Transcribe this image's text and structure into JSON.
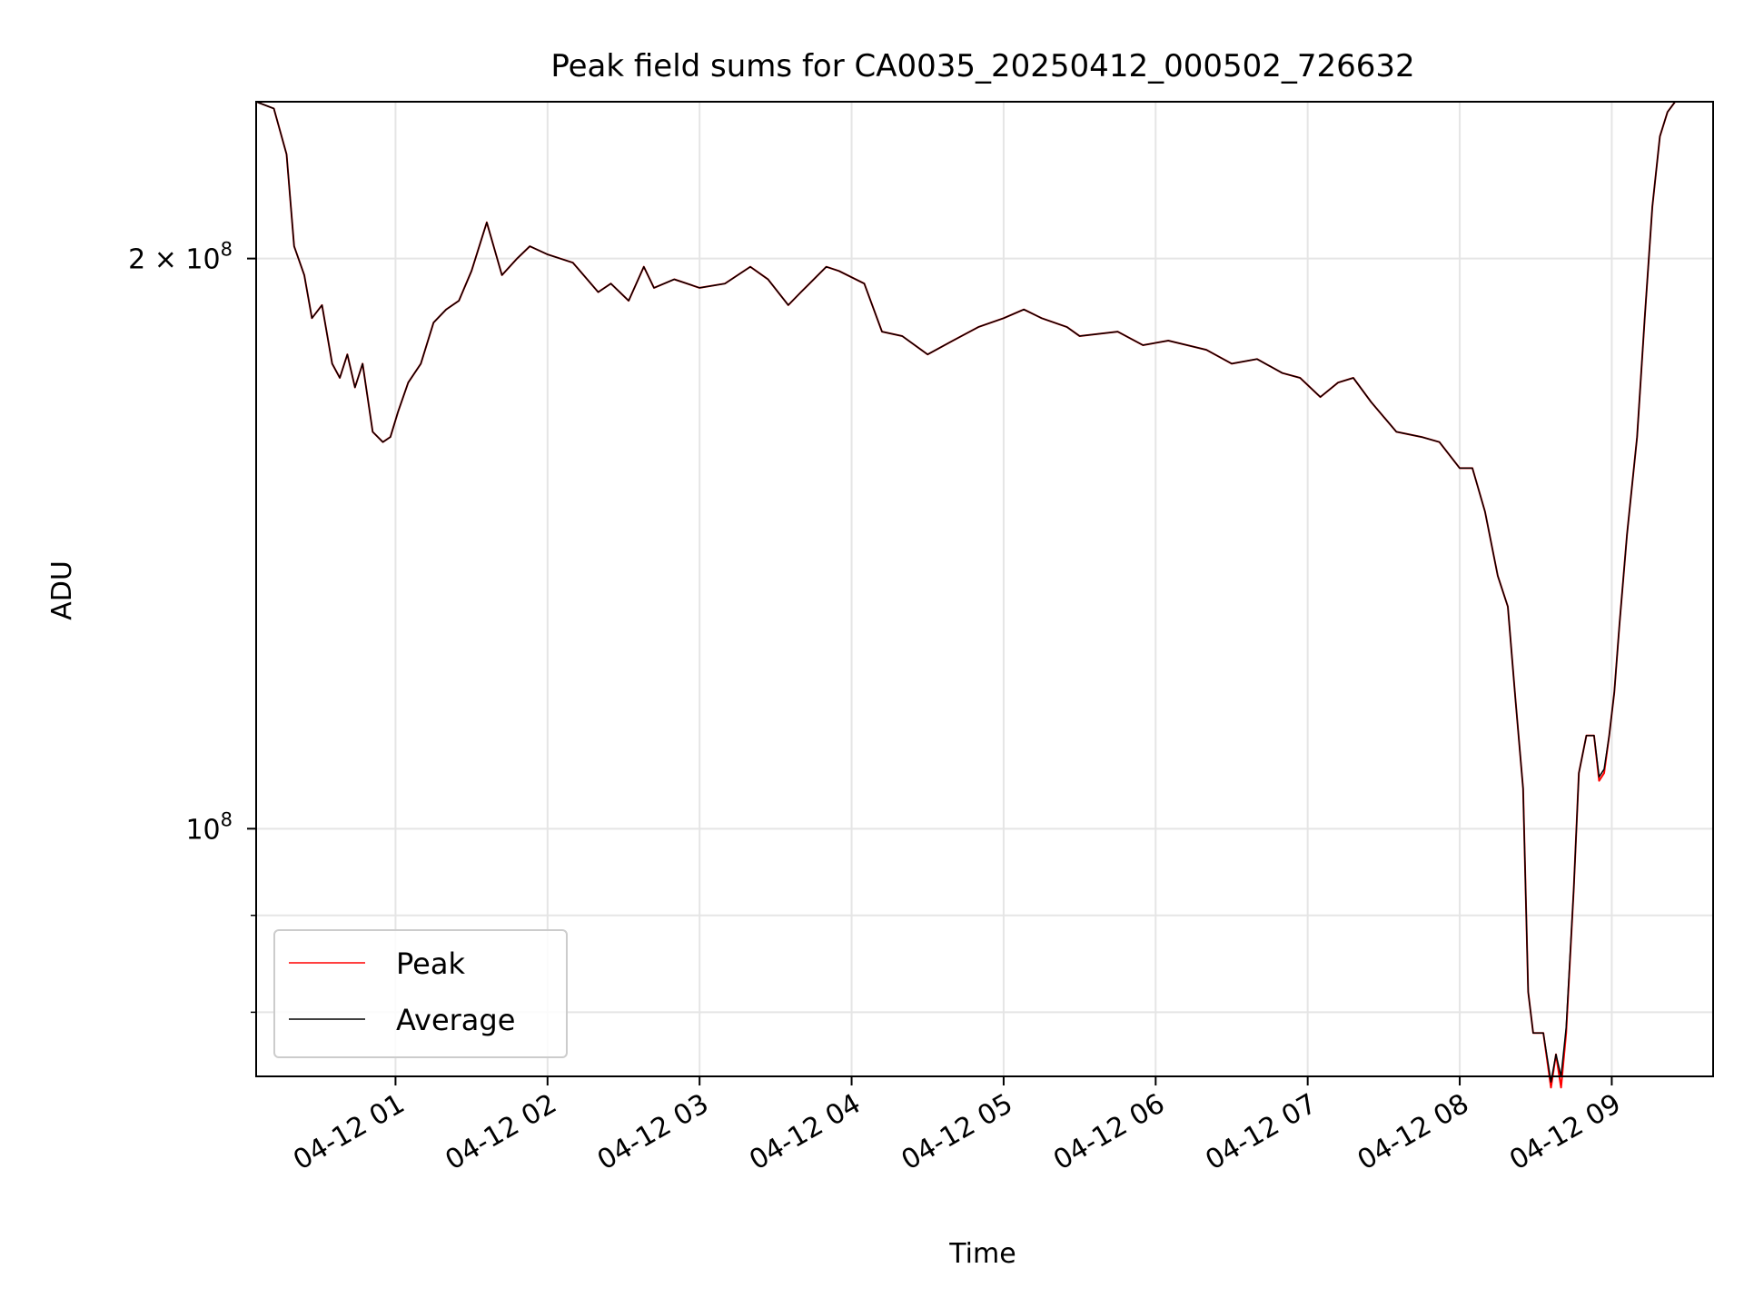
{
  "chart_data": {
    "type": "line",
    "title": "Peak field sums for CA0035_20250412_000502_726632",
    "xlabel": "Time",
    "ylabel": "ADU",
    "y_scale": "log",
    "ylim": [
      74000000,
      242000000
    ],
    "xlim": [
      "2025-04-12 00:05",
      "2025-04-12 09:40"
    ],
    "grid": true,
    "legend_position": "lower-left",
    "x_ticks": [
      {
        "value": "2025-04-12 01:00",
        "label": "04-12 01"
      },
      {
        "value": "2025-04-12 02:00",
        "label": "04-12 02"
      },
      {
        "value": "2025-04-12 03:00",
        "label": "04-12 03"
      },
      {
        "value": "2025-04-12 04:00",
        "label": "04-12 04"
      },
      {
        "value": "2025-04-12 05:00",
        "label": "04-12 05"
      },
      {
        "value": "2025-04-12 06:00",
        "label": "04-12 06"
      },
      {
        "value": "2025-04-12 07:00",
        "label": "04-12 07"
      },
      {
        "value": "2025-04-12 08:00",
        "label": "04-12 08"
      },
      {
        "value": "2025-04-12 09:00",
        "label": "04-12 09"
      }
    ],
    "y_ticks": [
      {
        "value": 200000000,
        "label_base": "2 × 10",
        "label_exp": "8"
      },
      {
        "value": 100000000,
        "label_base": "10",
        "label_exp": "8"
      }
    ],
    "y_minor_ticks": [
      80000000,
      90000000
    ],
    "series": [
      {
        "name": "Peak",
        "color": "#ff0000",
        "x": [
          "2025-04-12 00:05",
          "2025-04-12 00:12",
          "2025-04-12 00:17",
          "2025-04-12 00:20",
          "2025-04-12 00:24",
          "2025-04-12 00:27",
          "2025-04-12 00:31",
          "2025-04-12 00:35",
          "2025-04-12 00:38",
          "2025-04-12 00:41",
          "2025-04-12 00:44",
          "2025-04-12 00:47",
          "2025-04-12 00:51",
          "2025-04-12 00:55",
          "2025-04-12 00:58",
          "2025-04-12 01:01",
          "2025-04-12 01:05",
          "2025-04-12 01:10",
          "2025-04-12 01:15",
          "2025-04-12 01:20",
          "2025-04-12 01:25",
          "2025-04-12 01:30",
          "2025-04-12 01:36",
          "2025-04-12 01:42",
          "2025-04-12 01:48",
          "2025-04-12 01:53",
          "2025-04-12 02:00",
          "2025-04-12 02:10",
          "2025-04-12 02:20",
          "2025-04-12 02:25",
          "2025-04-12 02:32",
          "2025-04-12 02:38",
          "2025-04-12 02:42",
          "2025-04-12 02:50",
          "2025-04-12 03:00",
          "2025-04-12 03:10",
          "2025-04-12 03:20",
          "2025-04-12 03:27",
          "2025-04-12 03:35",
          "2025-04-12 03:40",
          "2025-04-12 03:50",
          "2025-04-12 03:55",
          "2025-04-12 04:05",
          "2025-04-12 04:12",
          "2025-04-12 04:20",
          "2025-04-12 04:30",
          "2025-04-12 04:40",
          "2025-04-12 04:50",
          "2025-04-12 05:00",
          "2025-04-12 05:08",
          "2025-04-12 05:15",
          "2025-04-12 05:25",
          "2025-04-12 05:30",
          "2025-04-12 05:45",
          "2025-04-12 05:55",
          "2025-04-12 06:05",
          "2025-04-12 06:20",
          "2025-04-12 06:30",
          "2025-04-12 06:40",
          "2025-04-12 06:50",
          "2025-04-12 06:57",
          "2025-04-12 07:05",
          "2025-04-12 07:12",
          "2025-04-12 07:18",
          "2025-04-12 07:25",
          "2025-04-12 07:35",
          "2025-04-12 07:45",
          "2025-04-12 07:52",
          "2025-04-12 08:00",
          "2025-04-12 08:05",
          "2025-04-12 08:10",
          "2025-04-12 08:15",
          "2025-04-12 08:19",
          "2025-04-12 08:22",
          "2025-04-12 08:25",
          "2025-04-12 08:27",
          "2025-04-12 08:29",
          "2025-04-12 08:33",
          "2025-04-12 08:36",
          "2025-04-12 08:38",
          "2025-04-12 08:40",
          "2025-04-12 08:42",
          "2025-04-12 08:45",
          "2025-04-12 08:47",
          "2025-04-12 08:50",
          "2025-04-12 08:53",
          "2025-04-12 08:55",
          "2025-04-12 08:57",
          "2025-04-12 08:59",
          "2025-04-12 09:01",
          "2025-04-12 09:03",
          "2025-04-12 09:06",
          "2025-04-12 09:10",
          "2025-04-12 09:13",
          "2025-04-12 09:16",
          "2025-04-12 09:19",
          "2025-04-12 09:22",
          "2025-04-12 09:25",
          "2025-04-12 09:30",
          "2025-04-12 09:35",
          "2025-04-12 09:40"
        ],
        "y": [
          242000000,
          240000000,
          227000000,
          203000000,
          196000000,
          186000000,
          189000000,
          176000000,
          173000000,
          178000000,
          171000000,
          176000000,
          162000000,
          160000000,
          161000000,
          166000000,
          172000000,
          176000000,
          185000000,
          188000000,
          190000000,
          197000000,
          209000000,
          196000000,
          200000000,
          203000000,
          201000000,
          199000000,
          192000000,
          194000000,
          190000000,
          198000000,
          193000000,
          195000000,
          193000000,
          194000000,
          198000000,
          195000000,
          189000000,
          192000000,
          198000000,
          197000000,
          194000000,
          183000000,
          182000000,
          178000000,
          181000000,
          184000000,
          186000000,
          188000000,
          186000000,
          184000000,
          182000000,
          183000000,
          180000000,
          181000000,
          179000000,
          176000000,
          177000000,
          174000000,
          173000000,
          169000000,
          172000000,
          173000000,
          168000000,
          162000000,
          161000000,
          160000000,
          155000000,
          155000000,
          147000000,
          136000000,
          131000000,
          117000000,
          105000000,
          82000000,
          78000000,
          78000000,
          73000000,
          76000000,
          73000000,
          78000000,
          93000000,
          107000000,
          112000000,
          112000000,
          106000000,
          107000000,
          112000000,
          118000000,
          128000000,
          143000000,
          161000000,
          186000000,
          213000000,
          232000000,
          239000000,
          242000000,
          242000000,
          242000000,
          242000000
        ]
      },
      {
        "name": "Average",
        "color": "#000000",
        "x": [
          "2025-04-12 00:05",
          "2025-04-12 00:12",
          "2025-04-12 00:17",
          "2025-04-12 00:20",
          "2025-04-12 00:24",
          "2025-04-12 00:27",
          "2025-04-12 00:31",
          "2025-04-12 00:35",
          "2025-04-12 00:38",
          "2025-04-12 00:41",
          "2025-04-12 00:44",
          "2025-04-12 00:47",
          "2025-04-12 00:51",
          "2025-04-12 00:55",
          "2025-04-12 00:58",
          "2025-04-12 01:01",
          "2025-04-12 01:05",
          "2025-04-12 01:10",
          "2025-04-12 01:15",
          "2025-04-12 01:20",
          "2025-04-12 01:25",
          "2025-04-12 01:30",
          "2025-04-12 01:36",
          "2025-04-12 01:42",
          "2025-04-12 01:48",
          "2025-04-12 01:53",
          "2025-04-12 02:00",
          "2025-04-12 02:10",
          "2025-04-12 02:20",
          "2025-04-12 02:25",
          "2025-04-12 02:32",
          "2025-04-12 02:38",
          "2025-04-12 02:42",
          "2025-04-12 02:50",
          "2025-04-12 03:00",
          "2025-04-12 03:10",
          "2025-04-12 03:20",
          "2025-04-12 03:27",
          "2025-04-12 03:35",
          "2025-04-12 03:40",
          "2025-04-12 03:50",
          "2025-04-12 03:55",
          "2025-04-12 04:05",
          "2025-04-12 04:12",
          "2025-04-12 04:20",
          "2025-04-12 04:30",
          "2025-04-12 04:40",
          "2025-04-12 04:50",
          "2025-04-12 05:00",
          "2025-04-12 05:08",
          "2025-04-12 05:15",
          "2025-04-12 05:25",
          "2025-04-12 05:30",
          "2025-04-12 05:45",
          "2025-04-12 05:55",
          "2025-04-12 06:05",
          "2025-04-12 06:20",
          "2025-04-12 06:30",
          "2025-04-12 06:40",
          "2025-04-12 06:50",
          "2025-04-12 06:57",
          "2025-04-12 07:05",
          "2025-04-12 07:12",
          "2025-04-12 07:18",
          "2025-04-12 07:25",
          "2025-04-12 07:35",
          "2025-04-12 07:45",
          "2025-04-12 07:52",
          "2025-04-12 08:00",
          "2025-04-12 08:05",
          "2025-04-12 08:10",
          "2025-04-12 08:15",
          "2025-04-12 08:19",
          "2025-04-12 08:22",
          "2025-04-12 08:25",
          "2025-04-12 08:27",
          "2025-04-12 08:29",
          "2025-04-12 08:33",
          "2025-04-12 08:36",
          "2025-04-12 08:38",
          "2025-04-12 08:40",
          "2025-04-12 08:42",
          "2025-04-12 08:45",
          "2025-04-12 08:47",
          "2025-04-12 08:50",
          "2025-04-12 08:53",
          "2025-04-12 08:55",
          "2025-04-12 08:57",
          "2025-04-12 08:59",
          "2025-04-12 09:01",
          "2025-04-12 09:03",
          "2025-04-12 09:06",
          "2025-04-12 09:10",
          "2025-04-12 09:13",
          "2025-04-12 09:16",
          "2025-04-12 09:19",
          "2025-04-12 09:22",
          "2025-04-12 09:25",
          "2025-04-12 09:30",
          "2025-04-12 09:35",
          "2025-04-12 09:40"
        ],
        "y": [
          242000000,
          240000000,
          227000000,
          203000000,
          196000000,
          186000000,
          189000000,
          176000000,
          173000000,
          178000000,
          171000000,
          176000000,
          162000000,
          160000000,
          161000000,
          166000000,
          172000000,
          176000000,
          185000000,
          188000000,
          190000000,
          197000000,
          209000000,
          196000000,
          200000000,
          203000000,
          201000000,
          199000000,
          192000000,
          194000000,
          190000000,
          198000000,
          193000000,
          195000000,
          193000000,
          194000000,
          198000000,
          195000000,
          189000000,
          192000000,
          198000000,
          197000000,
          194000000,
          183000000,
          182000000,
          178000000,
          181000000,
          184000000,
          186000000,
          188000000,
          186000000,
          184000000,
          182000000,
          183000000,
          180000000,
          181000000,
          179000000,
          176000000,
          177000000,
          174000000,
          173000000,
          169000000,
          172000000,
          173000000,
          168000000,
          162000000,
          161000000,
          160000000,
          155000000,
          155000000,
          147000000,
          136000000,
          131000000,
          117000000,
          105000000,
          82000000,
          78000000,
          78000000,
          73500000,
          76000000,
          74000000,
          78500000,
          93000000,
          107000000,
          112000000,
          112000000,
          106500000,
          107500000,
          112000000,
          118000000,
          128000000,
          143000000,
          161000000,
          186000000,
          213000000,
          232000000,
          239000000,
          242000000,
          242000000,
          242000000,
          242000000
        ]
      }
    ]
  }
}
